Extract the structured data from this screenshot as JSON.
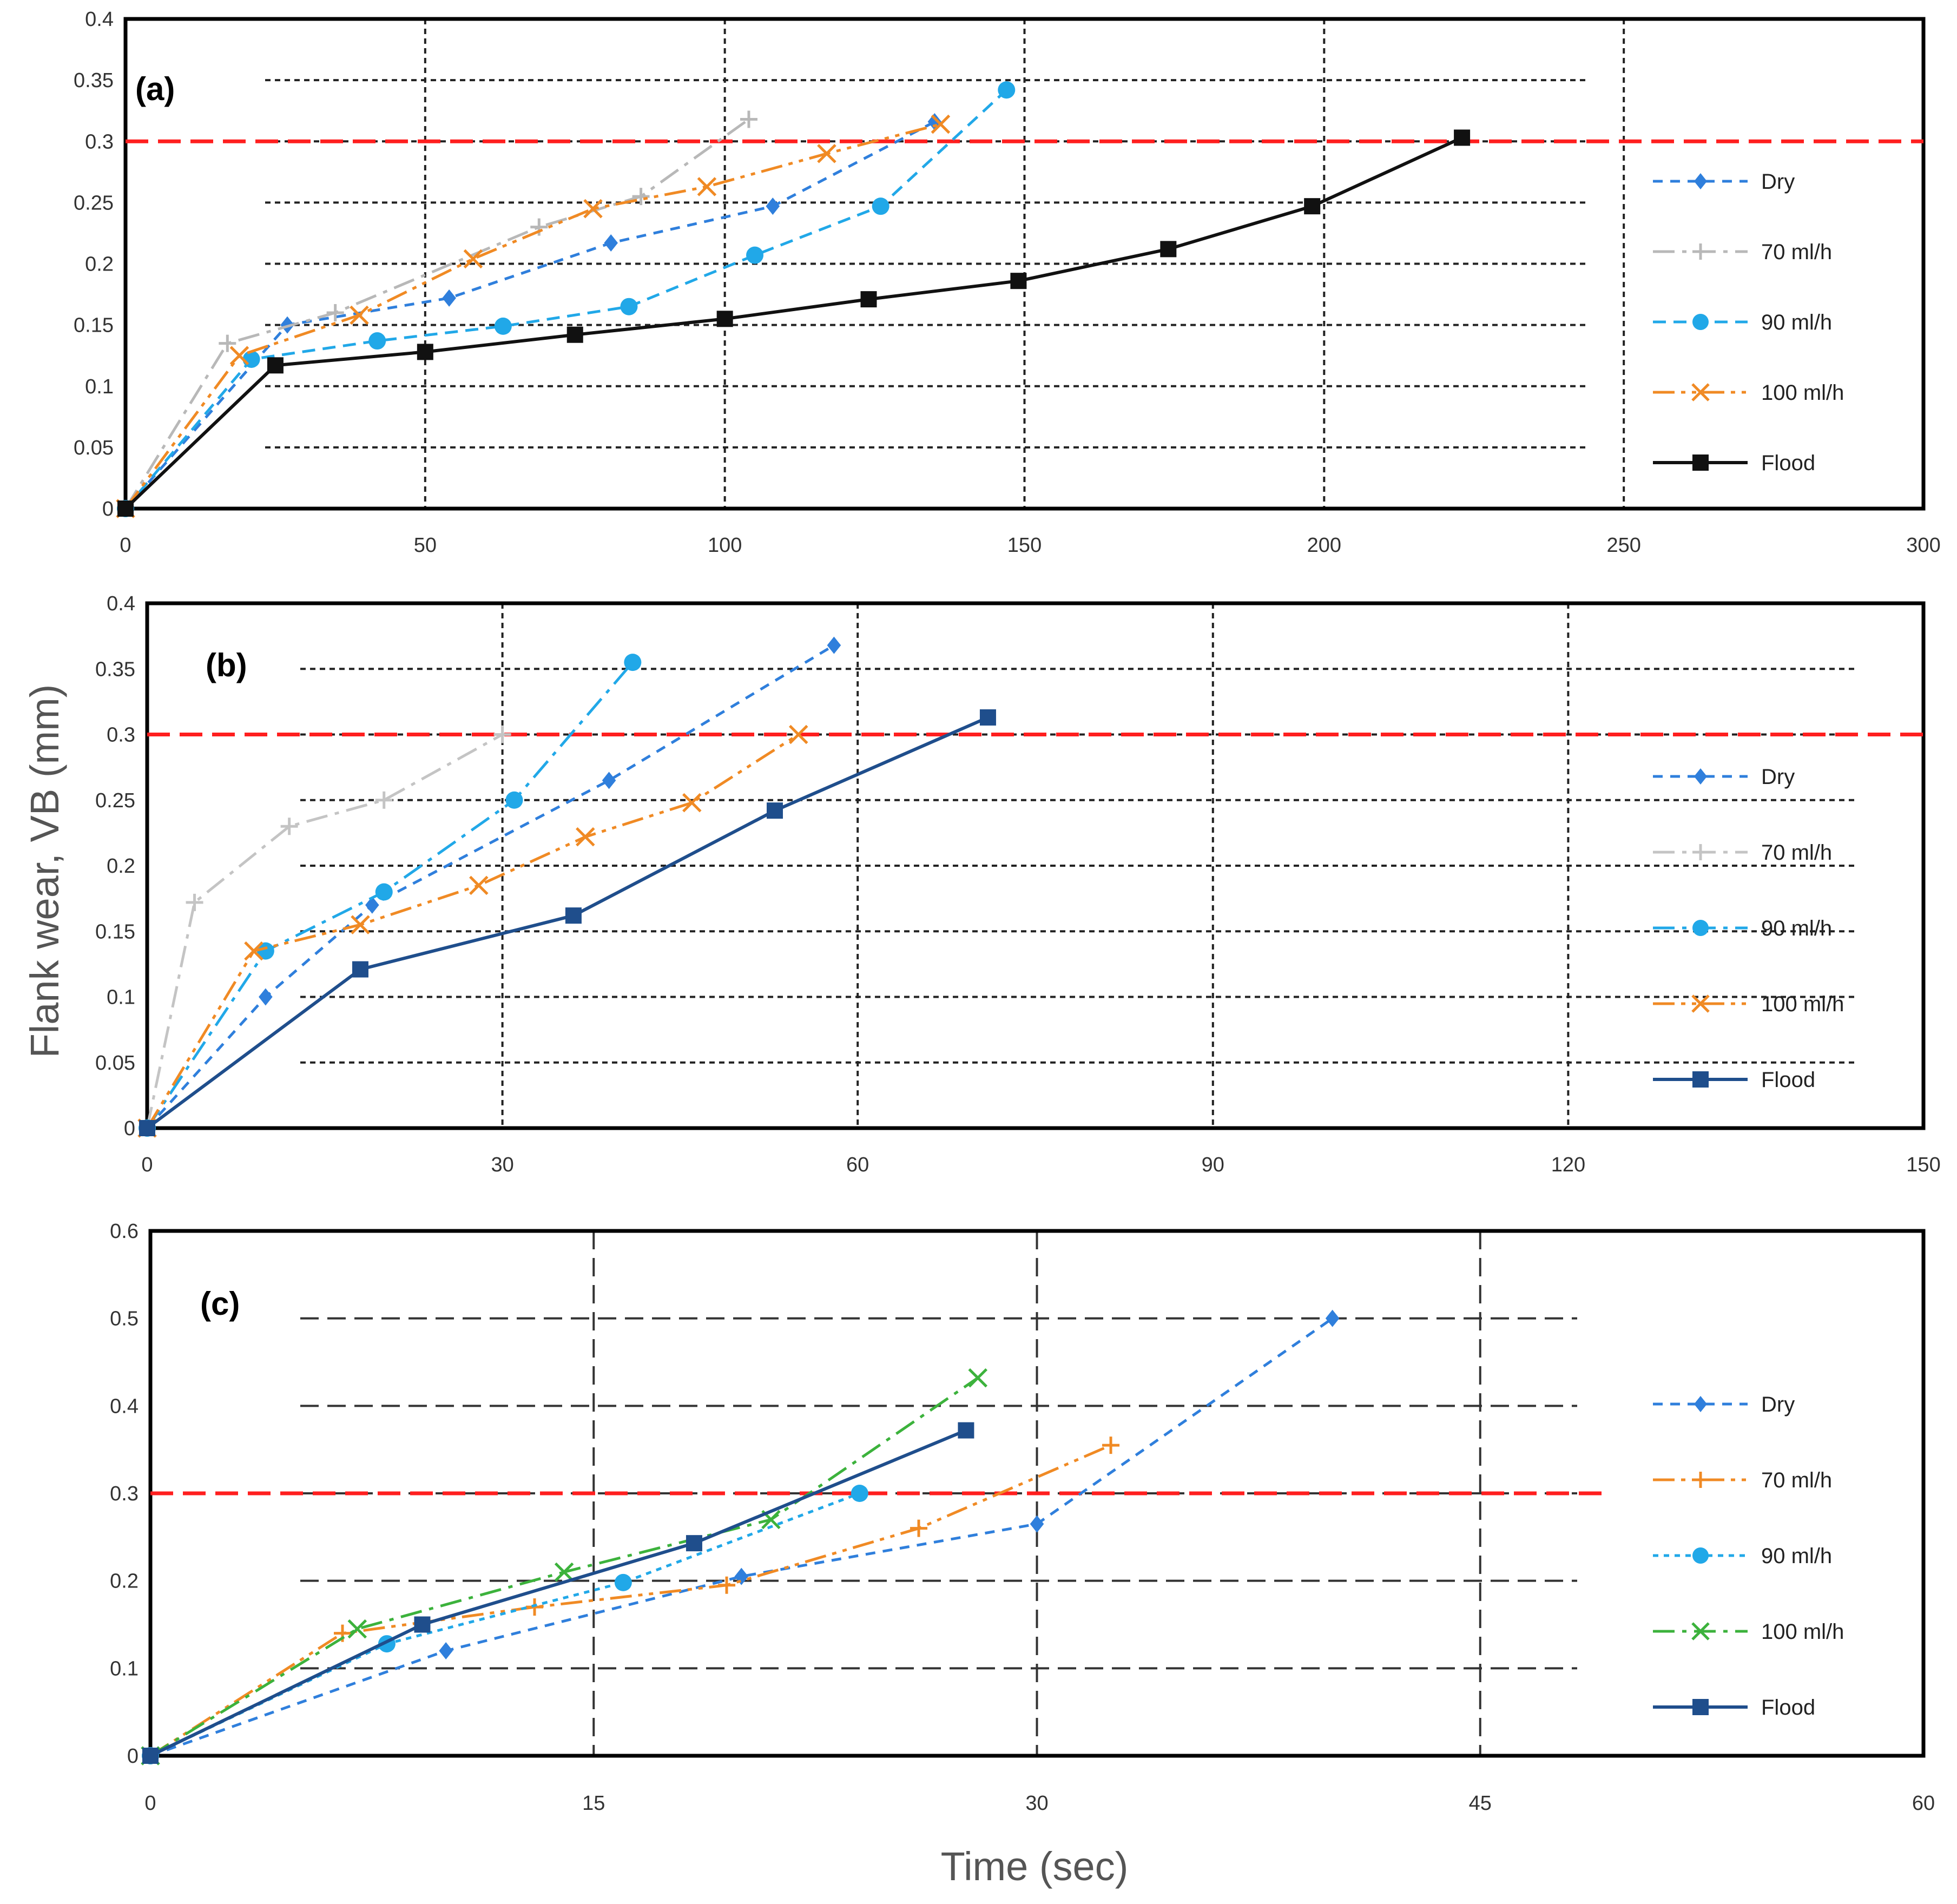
{
  "figure": {
    "ylabel": "Flank wear, VB (mm)",
    "xlabel": "Time (sec)"
  },
  "chart_data": [
    {
      "type": "line",
      "panel_label": "(a)",
      "xlim": [
        0,
        300
      ],
      "ylim": [
        0,
        0.4
      ],
      "x_ticks": [
        "0",
        "50",
        "100",
        "150",
        "200",
        "250",
        "300"
      ],
      "y_ticks": [
        "0",
        "0.05",
        "0.1",
        "0.15",
        "0.2",
        "0.25",
        "0.3",
        "0.35",
        "0.4"
      ],
      "threshold": 0.3,
      "series": [
        {
          "name": "Dry",
          "color": "#2f7fdc",
          "marker": "diamond",
          "dash": "18 14",
          "points": [
            [
              0,
              0
            ],
            [
              27,
              0.15
            ],
            [
              54,
              0.172
            ],
            [
              81,
              0.217
            ],
            [
              108,
              0.247
            ],
            [
              135,
              0.316
            ]
          ]
        },
        {
          "name": "70 ml/h",
          "color": "#b8b8b8",
          "marker": "plus",
          "dash": "40 14 8 14",
          "points": [
            [
              0,
              0
            ],
            [
              17,
              0.135
            ],
            [
              35,
              0.16
            ],
            [
              69,
              0.23
            ],
            [
              86,
              0.255
            ],
            [
              104,
              0.318
            ]
          ]
        },
        {
          "name": "90 ml/h",
          "color": "#21a8e8",
          "marker": "circle",
          "dash": "24 14",
          "points": [
            [
              0,
              0
            ],
            [
              21,
              0.122
            ],
            [
              42,
              0.137
            ],
            [
              63,
              0.149
            ],
            [
              84,
              0.165
            ],
            [
              105,
              0.207
            ],
            [
              126,
              0.247
            ],
            [
              147,
              0.342
            ]
          ]
        },
        {
          "name": "100 ml/h",
          "color": "#f08a24",
          "marker": "x",
          "dash": "40 12 8 12 8 12",
          "points": [
            [
              0,
              0
            ],
            [
              19,
              0.125
            ],
            [
              39,
              0.158
            ],
            [
              58,
              0.204
            ],
            [
              78,
              0.245
            ],
            [
              97,
              0.263
            ],
            [
              117,
              0.29
            ],
            [
              136,
              0.314
            ]
          ]
        },
        {
          "name": "Flood",
          "color": "#111111",
          "marker": "square",
          "dash": "",
          "points": [
            [
              0,
              0
            ],
            [
              25,
              0.117
            ],
            [
              50,
              0.128
            ],
            [
              75,
              0.142
            ],
            [
              100,
              0.155
            ],
            [
              124,
              0.171
            ],
            [
              149,
              0.186
            ],
            [
              174,
              0.212
            ],
            [
              198,
              0.247
            ],
            [
              223,
              0.303
            ]
          ]
        }
      ]
    },
    {
      "type": "line",
      "panel_label": "(b)",
      "xlim": [
        0,
        150
      ],
      "ylim": [
        0,
        0.4
      ],
      "x_ticks": [
        "0",
        "30",
        "60",
        "90",
        "120",
        "150"
      ],
      "y_ticks": [
        "0",
        "0.05",
        "0.1",
        "0.15",
        "0.2",
        "0.25",
        "0.3",
        "0.35",
        "0.4"
      ],
      "threshold": 0.3,
      "series": [
        {
          "name": "Dry",
          "color": "#2f7fdc",
          "marker": "diamond",
          "dash": "18 14",
          "points": [
            [
              0,
              0
            ],
            [
              10,
              0.1
            ],
            [
              19,
              0.17
            ],
            [
              39,
              0.265
            ],
            [
              58,
              0.368
            ]
          ]
        },
        {
          "name": "70 ml/h",
          "color": "#c4c4c4",
          "marker": "plus",
          "dash": "40 14 8 14",
          "points": [
            [
              0,
              0
            ],
            [
              4,
              0.172
            ],
            [
              12,
              0.23
            ],
            [
              20,
              0.25
            ],
            [
              30,
              0.3
            ]
          ]
        },
        {
          "name": "90 ml/h",
          "color": "#21a8e8",
          "marker": "circle",
          "dash": "40 14 8 14",
          "points": [
            [
              0,
              0
            ],
            [
              10,
              0.135
            ],
            [
              20,
              0.18
            ],
            [
              31,
              0.25
            ],
            [
              41,
              0.355
            ]
          ]
        },
        {
          "name": "100 ml/h",
          "color": "#f08a24",
          "marker": "x",
          "dash": "40 12 8 12 8 12",
          "points": [
            [
              0,
              0
            ],
            [
              9,
              0.135
            ],
            [
              18,
              0.155
            ],
            [
              28,
              0.185
            ],
            [
              37,
              0.222
            ],
            [
              46,
              0.248
            ],
            [
              55,
              0.3
            ]
          ]
        },
        {
          "name": "Flood",
          "color": "#1f4e8c",
          "marker": "square",
          "dash": "",
          "points": [
            [
              0,
              0
            ],
            [
              18,
              0.121
            ],
            [
              36,
              0.162
            ],
            [
              53,
              0.242
            ],
            [
              71,
              0.313
            ]
          ]
        }
      ]
    },
    {
      "type": "line",
      "panel_label": "(c)",
      "xlim": [
        0,
        60
      ],
      "ylim": [
        0,
        0.6
      ],
      "x_ticks": [
        "0",
        "15",
        "30",
        "45",
        "60"
      ],
      "y_ticks": [
        "0",
        "0.1",
        "0.2",
        "0.3",
        "0.4",
        "0.5",
        "0.6"
      ],
      "threshold": 0.3,
      "series": [
        {
          "name": "Dry",
          "color": "#2f7fdc",
          "marker": "diamond",
          "dash": "18 14",
          "points": [
            [
              0,
              0
            ],
            [
              10,
              0.12
            ],
            [
              20,
              0.205
            ],
            [
              30,
              0.265
            ],
            [
              40,
              0.5
            ]
          ]
        },
        {
          "name": "70 ml/h",
          "color": "#f08a24",
          "marker": "plus",
          "dash": "40 12 8 12 8 12",
          "points": [
            [
              0,
              0
            ],
            [
              6.5,
              0.14
            ],
            [
              13,
              0.17
            ],
            [
              19.5,
              0.195
            ],
            [
              26,
              0.26
            ],
            [
              32.5,
              0.355
            ]
          ]
        },
        {
          "name": "90 ml/h",
          "color": "#21a8e8",
          "marker": "circle",
          "dash": "10 10",
          "points": [
            [
              0,
              0
            ],
            [
              8,
              0.128
            ],
            [
              16,
              0.198
            ],
            [
              24,
              0.3
            ]
          ]
        },
        {
          "name": "100 ml/h",
          "color": "#3cb23c",
          "marker": "x",
          "dash": "40 14 8 14",
          "points": [
            [
              0,
              0
            ],
            [
              7,
              0.145
            ],
            [
              14,
              0.21
            ],
            [
              21,
              0.27
            ],
            [
              28,
              0.432
            ]
          ]
        },
        {
          "name": "Flood",
          "color": "#1f4e8c",
          "marker": "square",
          "dash": "",
          "points": [
            [
              0,
              0
            ],
            [
              9.2,
              0.15
            ],
            [
              18.4,
              0.243
            ],
            [
              27.6,
              0.372
            ]
          ]
        }
      ]
    }
  ]
}
